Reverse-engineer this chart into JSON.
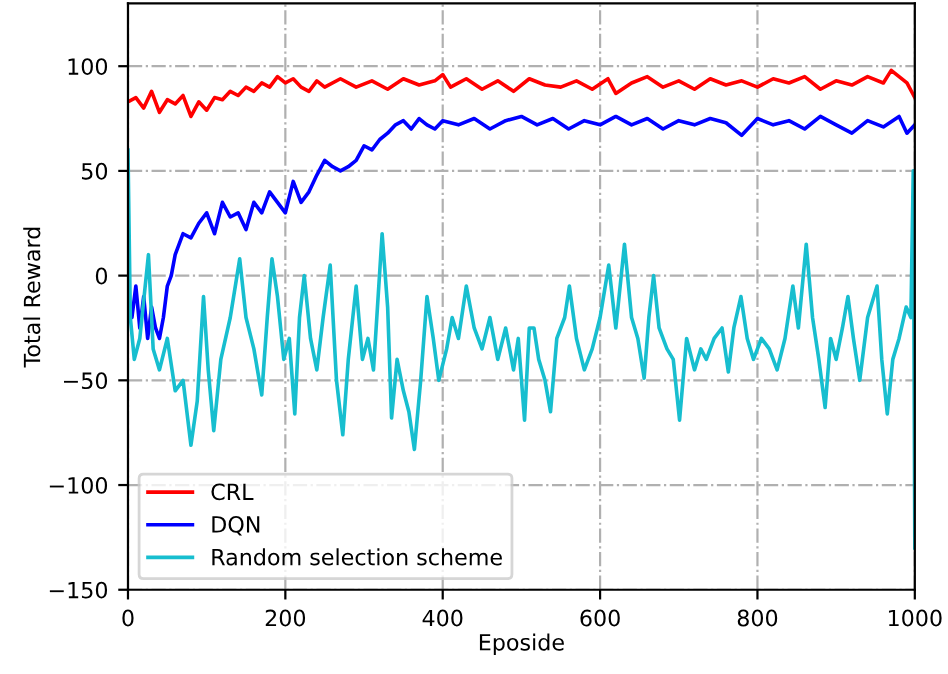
{
  "chart_data": {
    "type": "line",
    "xlabel": "Eposide",
    "ylabel": "Total Reward",
    "xlim": [
      0,
      1000
    ],
    "ylim": [
      -150,
      130
    ],
    "xticks": [
      0,
      200,
      400,
      600,
      800,
      1000
    ],
    "yticks": [
      {
        "value": -150,
        "label": "−150"
      },
      {
        "value": -100,
        "label": "−100"
      },
      {
        "value": -50,
        "label": "−50"
      },
      0,
      50,
      100
    ],
    "grid": true,
    "legend": "bottom left",
    "marker": "none",
    "line_style": "solid",
    "series": [
      {
        "name": "CRL",
        "color": "#ff0000",
        "x": [
          0,
          10,
          20,
          30,
          40,
          50,
          60,
          70,
          80,
          90,
          100,
          110,
          120,
          130,
          140,
          150,
          160,
          170,
          180,
          190,
          200,
          210,
          220,
          230,
          240,
          250,
          270,
          290,
          310,
          330,
          350,
          370,
          390,
          400,
          410,
          430,
          450,
          470,
          490,
          510,
          530,
          550,
          570,
          590,
          610,
          620,
          640,
          660,
          680,
          700,
          720,
          740,
          760,
          780,
          800,
          820,
          840,
          860,
          880,
          900,
          920,
          940,
          960,
          970,
          980,
          990,
          1000
        ],
        "values": [
          83,
          85,
          80,
          88,
          78,
          84,
          82,
          86,
          76,
          83,
          79,
          85,
          84,
          88,
          86,
          90,
          88,
          92,
          90,
          95,
          92,
          94,
          90,
          88,
          93,
          90,
          94,
          90,
          93,
          89,
          94,
          91,
          93,
          96,
          90,
          94,
          89,
          93,
          88,
          94,
          91,
          90,
          93,
          89,
          94,
          87,
          92,
          95,
          90,
          93,
          89,
          94,
          91,
          93,
          90,
          94,
          92,
          95,
          89,
          93,
          91,
          95,
          92,
          98,
          95,
          92,
          85
        ]
      },
      {
        "name": "DQN",
        "color": "#0000ff",
        "x": [
          0,
          5,
          10,
          15,
          20,
          25,
          30,
          35,
          40,
          45,
          50,
          55,
          60,
          65,
          70,
          80,
          90,
          100,
          110,
          120,
          130,
          140,
          150,
          160,
          170,
          180,
          190,
          200,
          210,
          220,
          230,
          240,
          250,
          260,
          270,
          280,
          290,
          300,
          310,
          320,
          330,
          340,
          350,
          360,
          370,
          380,
          390,
          400,
          420,
          440,
          460,
          480,
          500,
          520,
          540,
          560,
          580,
          600,
          620,
          640,
          660,
          680,
          700,
          720,
          740,
          760,
          780,
          800,
          820,
          840,
          860,
          880,
          900,
          920,
          940,
          960,
          980,
          990,
          1000
        ],
        "values": [
          -10,
          -20,
          -5,
          -25,
          -10,
          -30,
          -15,
          -25,
          -30,
          -20,
          -5,
          0,
          10,
          15,
          20,
          18,
          25,
          30,
          20,
          35,
          28,
          30,
          22,
          35,
          30,
          40,
          35,
          30,
          45,
          35,
          40,
          48,
          55,
          52,
          50,
          52,
          55,
          62,
          60,
          65,
          68,
          72,
          74,
          70,
          75,
          72,
          70,
          74,
          72,
          75,
          70,
          74,
          76,
          72,
          75,
          70,
          74,
          72,
          76,
          72,
          75,
          70,
          74,
          72,
          75,
          73,
          67,
          75,
          72,
          74,
          70,
          76,
          72,
          68,
          74,
          71,
          76,
          68,
          72
        ]
      },
      {
        "name": "Random selection scheme",
        "color": "#17becf",
        "x": [
          0,
          3,
          8,
          15,
          26,
          32,
          40,
          50,
          60,
          70,
          80,
          88,
          96,
          102,
          109,
          118,
          130,
          142,
          150,
          160,
          170,
          177,
          183,
          190,
          198,
          205,
          212,
          218,
          224,
          232,
          240,
          248,
          257,
          265,
          273,
          280,
          290,
          298,
          305,
          312,
          323,
          330,
          335,
          342,
          350,
          357,
          364,
          372,
          380,
          388,
          395,
          405,
          412,
          420,
          430,
          440,
          450,
          460,
          470,
          480,
          490,
          496,
          504,
          510,
          516,
          522,
          530,
          537,
          545,
          555,
          561,
          570,
          580,
          590,
          600,
          611,
          620,
          631,
          640,
          648,
          656,
          662,
          668,
          675,
          685,
          693,
          701,
          710,
          720,
          728,
          735,
          745,
          755,
          763,
          770,
          779,
          787,
          795,
          805,
          815,
          825,
          835,
          845,
          852,
          862,
          870,
          878,
          886,
          893,
          900,
          908,
          915,
          922,
          930,
          940,
          952,
          958,
          965,
          972,
          980,
          989,
          995,
          998,
          1000
        ],
        "values": [
          60,
          -20,
          -40,
          -30,
          10,
          -35,
          -45,
          -30,
          -55,
          -50,
          -81,
          -60,
          -10,
          -45,
          -74,
          -40,
          -20,
          8,
          -20,
          -35,
          -57,
          -20,
          8,
          -10,
          -40,
          -30,
          -66,
          -20,
          0,
          -30,
          -45,
          -20,
          5,
          -50,
          -76,
          -40,
          -5,
          -40,
          -30,
          -45,
          20,
          -15,
          -68,
          -40,
          -55,
          -65,
          -83,
          -50,
          -10,
          -30,
          -50,
          -35,
          -20,
          -30,
          -5,
          -25,
          -35,
          -20,
          -40,
          -25,
          -45,
          -30,
          -69,
          -25,
          -25,
          -40,
          -50,
          -65,
          -30,
          -20,
          -5,
          -30,
          -45,
          -35,
          -20,
          5,
          -25,
          15,
          -20,
          -30,
          -49,
          -20,
          0,
          -25,
          -35,
          -40,
          -69,
          -30,
          -45,
          -35,
          -40,
          -30,
          -25,
          -46,
          -25,
          -10,
          -30,
          -40,
          -30,
          -35,
          -45,
          -30,
          -5,
          -25,
          15,
          -20,
          -40,
          -63,
          -30,
          -40,
          -25,
          -10,
          -30,
          -50,
          -20,
          -5,
          -40,
          -66,
          -40,
          -30,
          -15,
          -20,
          50,
          -130
        ]
      }
    ]
  }
}
